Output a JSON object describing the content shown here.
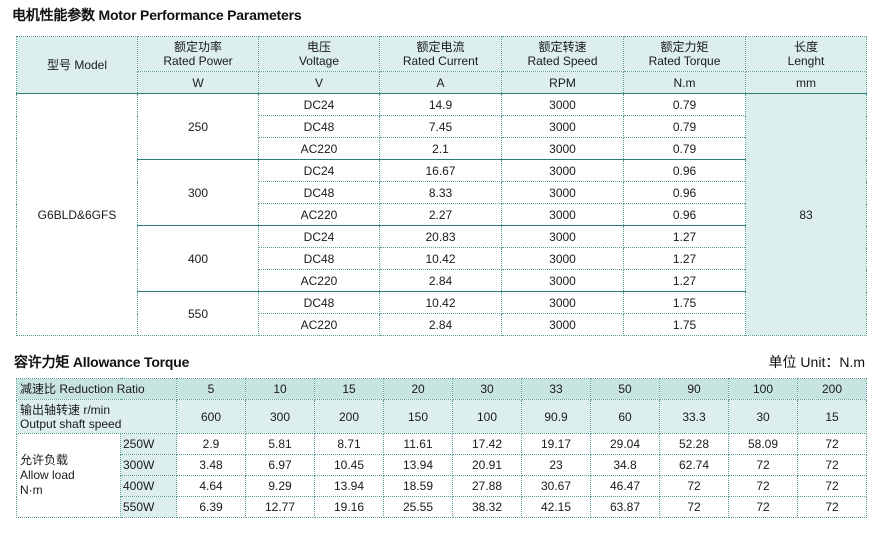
{
  "motor": {
    "title": "电机性能参数 Motor Performance Parameters",
    "headers": {
      "model": "型号 Model",
      "power_cn": "额定功率",
      "power_en": "Rated Power",
      "power_unit": "W",
      "voltage_cn": "电压",
      "voltage_en": "Voltage",
      "voltage_unit": "V",
      "current_cn": "额定电流",
      "current_en": "Rated Current",
      "current_unit": "A",
      "speed_cn": "额定转速",
      "speed_en": "Rated Speed",
      "speed_unit": "RPM",
      "torque_cn": "额定力矩",
      "torque_en": "Rated Torque",
      "torque_unit": "N.m",
      "length_cn": "长度",
      "length_en": "Lenght",
      "length_unit": "mm"
    },
    "model_name": "G6BLD&6GFS",
    "length_value": "83",
    "groups": [
      {
        "power": "250",
        "rows": [
          {
            "voltage": "DC24",
            "current": "14.9",
            "speed": "3000",
            "torque": "0.79"
          },
          {
            "voltage": "DC48",
            "current": "7.45",
            "speed": "3000",
            "torque": "0.79"
          },
          {
            "voltage": "AC220",
            "current": "2.1",
            "speed": "3000",
            "torque": "0.79"
          }
        ]
      },
      {
        "power": "300",
        "rows": [
          {
            "voltage": "DC24",
            "current": "16.67",
            "speed": "3000",
            "torque": "0.96"
          },
          {
            "voltage": "DC48",
            "current": "8.33",
            "speed": "3000",
            "torque": "0.96"
          },
          {
            "voltage": "AC220",
            "current": "2.27",
            "speed": "3000",
            "torque": "0.96"
          }
        ]
      },
      {
        "power": "400",
        "rows": [
          {
            "voltage": "DC24",
            "current": "20.83",
            "speed": "3000",
            "torque": "1.27"
          },
          {
            "voltage": "DC48",
            "current": "10.42",
            "speed": "3000",
            "torque": "1.27"
          },
          {
            "voltage": "AC220",
            "current": "2.84",
            "speed": "3000",
            "torque": "1.27"
          }
        ]
      },
      {
        "power": "550",
        "rows": [
          {
            "voltage": "DC48",
            "current": "10.42",
            "speed": "3000",
            "torque": "1.75"
          },
          {
            "voltage": "AC220",
            "current": "2.84",
            "speed": "3000",
            "torque": "1.75"
          }
        ]
      }
    ]
  },
  "allowance": {
    "title": "容许力矩 Allowance Torque",
    "unit": "单位 Unit：N.m",
    "ratio_label": "减速比 Reduction Ratio",
    "speed_label_cn": "输出轴转速 r/min",
    "speed_label_en": "Output shaft speed",
    "load_label_cn": "允许负载",
    "load_label_en1": "Allow load",
    "load_label_en2": "N·m",
    "ratios": [
      "5",
      "10",
      "15",
      "20",
      "30",
      "33",
      "50",
      "90",
      "100",
      "200"
    ],
    "speeds": [
      "600",
      "300",
      "200",
      "150",
      "100",
      "90.9",
      "60",
      "33.3",
      "30",
      "15"
    ],
    "loads": [
      {
        "power": "250W",
        "values": [
          "2.9",
          "5.81",
          "8.71",
          "11.61",
          "17.42",
          "19.17",
          "29.04",
          "52.28",
          "58.09",
          "72"
        ]
      },
      {
        "power": "300W",
        "values": [
          "3.48",
          "6.97",
          "10.45",
          "13.94",
          "20.91",
          "23",
          "34.8",
          "62.74",
          "72",
          "72"
        ]
      },
      {
        "power": "400W",
        "values": [
          "4.64",
          "9.29",
          "13.94",
          "18.59",
          "27.88",
          "30.67",
          "46.47",
          "72",
          "72",
          "72"
        ]
      },
      {
        "power": "550W",
        "values": [
          "6.39",
          "12.77",
          "19.16",
          "25.55",
          "38.32",
          "42.15",
          "63.87",
          "72",
          "72",
          "72"
        ]
      }
    ]
  }
}
